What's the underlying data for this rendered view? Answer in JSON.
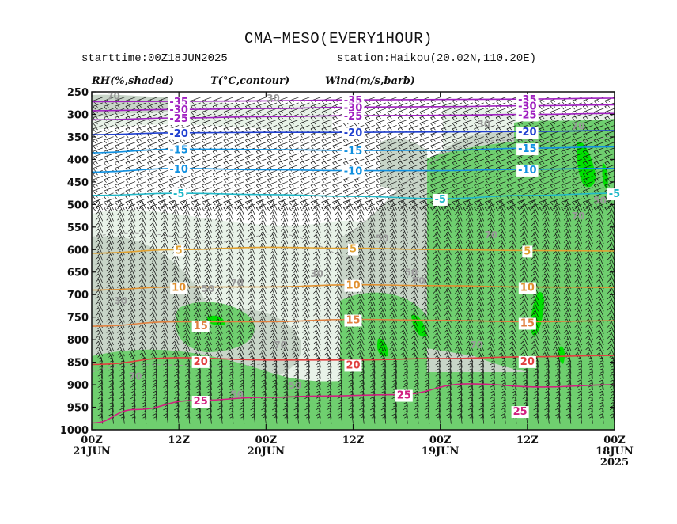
{
  "title": "CMA−MESO(EVERY1HOUR)",
  "subtitle_left": "starttime:00Z18JUN2025",
  "subtitle_right": "station:Haikou(20.02N,110.20E)",
  "panel_labels": {
    "rh": "RH(%,shaded)",
    "t": "T(°C,contour)",
    "wind": "Wind(m/s,barb)"
  },
  "chart_data": {
    "type": "time-height cross section",
    "y_axis": {
      "label": "",
      "units": "hPa",
      "ticks": [
        "250",
        "300",
        "350",
        "400",
        "450",
        "500",
        "550",
        "600",
        "650",
        "700",
        "750",
        "800",
        "850",
        "900",
        "950",
        "1000"
      ],
      "range": [
        250,
        1000
      ]
    },
    "x_axis": {
      "direction": "time decreasing to the right",
      "hours_range": [
        72,
        0
      ],
      "ticks": [
        {
          "hour": 72,
          "line1": "00Z",
          "line2": "21JUN",
          "line3": ""
        },
        {
          "hour": 60,
          "line1": "12Z",
          "line2": "",
          "line3": ""
        },
        {
          "hour": 48,
          "line1": "00Z",
          "line2": "20JUN",
          "line3": ""
        },
        {
          "hour": 36,
          "line1": "12Z",
          "line2": "",
          "line3": ""
        },
        {
          "hour": 24,
          "line1": "00Z",
          "line2": "19JUN",
          "line3": ""
        },
        {
          "hour": 12,
          "line1": "12Z",
          "line2": "",
          "line3": ""
        },
        {
          "hour": 0,
          "line1": "00Z",
          "line2": "18JUN",
          "line3": "2025"
        }
      ]
    },
    "temperature_contours": [
      {
        "label": "-35",
        "color": "#a020c0",
        "values": [
          [
            72,
            272
          ],
          [
            60,
            271
          ],
          [
            48,
            270
          ],
          [
            36,
            268
          ],
          [
            24,
            267
          ],
          [
            12,
            266
          ],
          [
            0,
            264
          ]
        ],
        "label_at": [
          [
            60,
            271
          ],
          [
            36,
            268
          ],
          [
            12,
            266
          ]
        ]
      },
      {
        "label": "-30",
        "color": "#a020c0",
        "values": [
          [
            72,
            292
          ],
          [
            60,
            289
          ],
          [
            48,
            287
          ],
          [
            36,
            284
          ],
          [
            24,
            283
          ],
          [
            12,
            281
          ],
          [
            0,
            279
          ]
        ],
        "label_at": [
          [
            60,
            289
          ],
          [
            36,
            284
          ],
          [
            12,
            281
          ]
        ]
      },
      {
        "label": "-25",
        "color": "#a020c0",
        "values": [
          [
            72,
            312
          ],
          [
            60,
            308
          ],
          [
            48,
            305
          ],
          [
            36,
            303
          ],
          [
            24,
            302
          ],
          [
            12,
            300
          ],
          [
            0,
            298
          ]
        ],
        "label_at": [
          [
            60,
            308
          ],
          [
            36,
            303
          ],
          [
            12,
            300
          ]
        ]
      },
      {
        "label": "-20",
        "color": "#2040d0",
        "values": [
          [
            72,
            345
          ],
          [
            60,
            341
          ],
          [
            48,
            340
          ],
          [
            36,
            340
          ],
          [
            24,
            339
          ],
          [
            12,
            338
          ],
          [
            0,
            336
          ]
        ],
        "label_at": [
          [
            60,
            341
          ],
          [
            36,
            340
          ],
          [
            12,
            338
          ]
        ]
      },
      {
        "label": "-15",
        "color": "#1090e0",
        "values": [
          [
            72,
            385
          ],
          [
            60,
            377
          ],
          [
            48,
            378
          ],
          [
            36,
            380
          ],
          [
            24,
            380
          ],
          [
            12,
            375
          ],
          [
            0,
            372
          ]
        ],
        "label_at": [
          [
            60,
            377
          ],
          [
            36,
            380
          ],
          [
            12,
            375
          ]
        ]
      },
      {
        "label": "-10",
        "color": "#1090e0",
        "values": [
          [
            72,
            428
          ],
          [
            60,
            420
          ],
          [
            48,
            423
          ],
          [
            36,
            425
          ],
          [
            24,
            425
          ],
          [
            12,
            422
          ],
          [
            0,
            420
          ]
        ],
        "label_at": [
          [
            60,
            420
          ],
          [
            36,
            425
          ],
          [
            12,
            422
          ]
        ]
      },
      {
        "label": "-5",
        "color": "#20b8c8",
        "values": [
          [
            72,
            480
          ],
          [
            60,
            475
          ],
          [
            48,
            478
          ],
          [
            36,
            482
          ],
          [
            24,
            487
          ],
          [
            12,
            480
          ],
          [
            0,
            475
          ]
        ],
        "label_at": [
          [
            60,
            475
          ],
          [
            24,
            487
          ],
          [
            0,
            475
          ]
        ]
      },
      {
        "label": "5",
        "color": "#e0a030",
        "values": [
          [
            72,
            608
          ],
          [
            60,
            600
          ],
          [
            48,
            595
          ],
          [
            36,
            597
          ],
          [
            24,
            600
          ],
          [
            12,
            602
          ],
          [
            0,
            603
          ]
        ],
        "label_at": [
          [
            60,
            600
          ],
          [
            36,
            597
          ],
          [
            12,
            602
          ]
        ]
      },
      {
        "label": "10",
        "color": "#e09030",
        "values": [
          [
            72,
            690
          ],
          [
            60,
            683
          ],
          [
            48,
            683
          ],
          [
            36,
            678
          ],
          [
            24,
            680
          ],
          [
            12,
            683
          ],
          [
            0,
            684
          ]
        ],
        "label_at": [
          [
            60,
            683
          ],
          [
            36,
            678
          ],
          [
            12,
            683
          ]
        ]
      },
      {
        "label": "15",
        "color": "#e08040",
        "values": [
          [
            72,
            770
          ],
          [
            60,
            760
          ],
          [
            48,
            760
          ],
          [
            36,
            755
          ],
          [
            24,
            757
          ],
          [
            12,
            760
          ],
          [
            0,
            758
          ]
        ],
        "label_at": [
          [
            57,
            768
          ],
          [
            36,
            755
          ],
          [
            12,
            762
          ]
        ]
      },
      {
        "label": "20",
        "color": "#e04040",
        "values": [
          [
            72,
            855
          ],
          [
            60,
            840
          ],
          [
            48,
            845
          ],
          [
            36,
            845
          ],
          [
            24,
            842
          ],
          [
            12,
            838
          ],
          [
            0,
            835
          ]
        ],
        "label_at": [
          [
            57,
            847
          ],
          [
            36,
            855
          ],
          [
            12,
            847
          ]
        ]
      },
      {
        "label": "25",
        "color": "#d02080",
        "values": [
          [
            72,
            985
          ],
          [
            66,
            955
          ],
          [
            58,
            935
          ],
          [
            48,
            928
          ],
          [
            40,
            925
          ],
          [
            30,
            922
          ],
          [
            20,
            898
          ],
          [
            10,
            905
          ],
          [
            0,
            900
          ]
        ],
        "label_at": [
          [
            57,
            935
          ],
          [
            29,
            922
          ],
          [
            13,
            958
          ]
        ]
      }
    ],
    "rh_shading": {
      "levels": [
        30,
        50,
        70,
        90
      ],
      "colors": [
        "#ffffff",
        "#e8f2e8",
        "#c8d5c8",
        "#6fcf6f",
        "#00e000"
      ],
      "labels_visible": [
        "30",
        "50",
        "70"
      ]
    },
    "wind_barbs": {
      "units": "m/s",
      "description": "wind barbs at all levels and hours"
    }
  }
}
